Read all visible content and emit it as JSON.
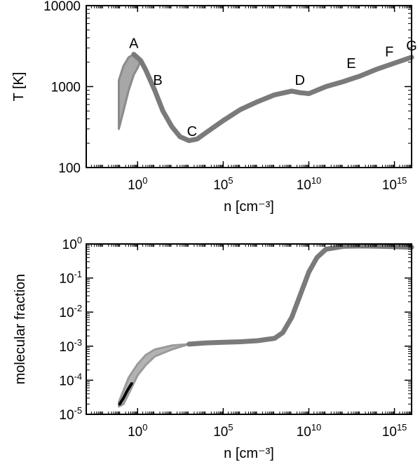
{
  "chart_data": [
    {
      "type": "line",
      "xlabel": "n [cm⁻³]",
      "ylabel": "T [K]",
      "x_scale": "log",
      "y_scale": "log",
      "xlim": [
        0.001,
        1e+16
      ],
      "ylim": [
        100,
        10000
      ],
      "x_ticks": [
        {
          "value": 1,
          "base": "10",
          "exp": "0"
        },
        {
          "value": 100000.0,
          "base": "10",
          "exp": "5"
        },
        {
          "value": 10000000000.0,
          "base": "10",
          "exp": "10"
        },
        {
          "value": 1000000000000000.0,
          "base": "10",
          "exp": "15"
        }
      ],
      "y_ticks": [
        {
          "value": 100,
          "label": "100"
        },
        {
          "value": 1000,
          "label": "1000"
        },
        {
          "value": 10000,
          "label": "10000"
        }
      ],
      "band": {
        "name": "",
        "color": "#8a8a8a",
        "upper": [
          [
            0.08,
            1200
          ],
          [
            0.15,
            1800
          ],
          [
            0.3,
            2300
          ],
          [
            0.6,
            2500
          ],
          [
            1.0,
            2400
          ],
          [
            1.5,
            2100
          ]
        ],
        "lower": [
          [
            1.5,
            2100
          ],
          [
            1.0,
            1700
          ],
          [
            0.6,
            1400
          ],
          [
            0.3,
            900
          ],
          [
            0.15,
            500
          ],
          [
            0.08,
            300
          ]
        ]
      },
      "series": [
        {
          "name": "",
          "color": "#7a7a7a",
          "points": [
            [
              0.6,
              2500
            ],
            [
              1.5,
              2100
            ],
            [
              3,
              1600
            ],
            [
              10,
              900
            ],
            [
              30,
              500
            ],
            [
              100,
              320
            ],
            [
              300,
              240
            ],
            [
              1000,
              215
            ],
            [
              3000,
              225
            ],
            [
              10000,
              270
            ],
            [
              100000.0,
              380
            ],
            [
              1000000.0,
              520
            ],
            [
              10000000.0,
              650
            ],
            [
              100000000.0,
              790
            ],
            [
              1000000000.0,
              880
            ],
            [
              1000000000.0,
              880
            ],
            [
              3000000000.0,
              840
            ],
            [
              10000000000.0,
              820
            ],
            [
              30000000000.0,
              900
            ],
            [
              100000000000.0,
              1000
            ],
            [
              1000000000000.0,
              1150
            ],
            [
              10000000000000.0,
              1350
            ],
            [
              100000000000000.0,
              1650
            ],
            [
              1000000000000000.0,
              1950
            ],
            [
              1e+16,
              2300
            ]
          ]
        }
      ],
      "annotations": [
        {
          "text": "A",
          "x": 0.6,
          "y": 3000
        },
        {
          "text": "B",
          "x": 15,
          "y": 1050
        },
        {
          "text": "C",
          "x": 1500,
          "y": 245
        },
        {
          "text": "D",
          "x": 3000000000.0,
          "y": 1050
        },
        {
          "text": "E",
          "x": 3000000000000.0,
          "y": 1700
        },
        {
          "text": "F",
          "x": 500000000000000.0,
          "y": 2350
        },
        {
          "text": "G",
          "x": 1e+16,
          "y": 2800
        }
      ]
    },
    {
      "type": "line",
      "xlabel": "n [cm⁻³]",
      "ylabel": "molecular fraction",
      "x_scale": "log",
      "y_scale": "log",
      "xlim": [
        0.001,
        1e+16
      ],
      "ylim": [
        1e-05,
        1
      ],
      "x_ticks": [
        {
          "value": 1,
          "base": "10",
          "exp": "0"
        },
        {
          "value": 100000.0,
          "base": "10",
          "exp": "5"
        },
        {
          "value": 10000000000.0,
          "base": "10",
          "exp": "10"
        },
        {
          "value": 1000000000000000.0,
          "base": "10",
          "exp": "15"
        }
      ],
      "y_ticks": [
        {
          "value": 1e-05,
          "base": "10",
          "exp": "-5"
        },
        {
          "value": 0.0001,
          "base": "10",
          "exp": "-4"
        },
        {
          "value": 0.001,
          "base": "10",
          "exp": "-3"
        },
        {
          "value": 0.01,
          "base": "10",
          "exp": "-2"
        },
        {
          "value": 0.1,
          "base": "10",
          "exp": "-1"
        },
        {
          "value": 1,
          "base": "10",
          "exp": "0"
        }
      ],
      "band": {
        "name": "",
        "color": "#9a9a9a",
        "upper": [
          [
            0.08,
            2.3e-05
          ],
          [
            0.15,
            5e-05
          ],
          [
            0.3,
            0.00012
          ],
          [
            1,
            0.0003
          ],
          [
            3,
            0.00055
          ],
          [
            10,
            0.0008
          ],
          [
            100,
            0.00105
          ],
          [
            1000,
            0.00115
          ]
        ],
        "lower": [
          [
            1000,
            0.00115
          ],
          [
            100,
            0.0008
          ],
          [
            10,
            0.0005
          ],
          [
            3,
            0.00028
          ],
          [
            1,
            0.00014
          ],
          [
            0.3,
            4e-05
          ],
          [
            0.15,
            2e-05
          ],
          [
            0.08,
            1.7e-05
          ]
        ]
      },
      "series": [
        {
          "name": "",
          "color": "#7a7a7a",
          "points": [
            [
              1000,
              0.00115
            ],
            [
              10000.0,
              0.00125
            ],
            [
              100000.0,
              0.0013
            ],
            [
              1000000.0,
              0.00135
            ],
            [
              10000000.0,
              0.00145
            ],
            [
              100000000.0,
              0.0017
            ],
            [
              300000000.0,
              0.0025
            ],
            [
              1000000000.0,
              0.007
            ],
            [
              3000000000.0,
              0.03
            ],
            [
              10000000000.0,
              0.15
            ],
            [
              30000000000.0,
              0.4
            ],
            [
              100000000000.0,
              0.7
            ],
            [
              1000000000000.0,
              0.85
            ],
            [
              10000000000000.0,
              0.87
            ],
            [
              100000000000000.0,
              0.86
            ],
            [
              1000000000000000.0,
              0.83
            ],
            [
              1e+16,
              0.8
            ]
          ]
        },
        {
          "name": "",
          "color": "#000000",
          "points": [
            [
              0.09,
              2e-05
            ],
            [
              0.15,
              3e-05
            ],
            [
              0.25,
              5e-05
            ],
            [
              0.45,
              8e-05
            ]
          ]
        }
      ],
      "annotations": []
    }
  ]
}
